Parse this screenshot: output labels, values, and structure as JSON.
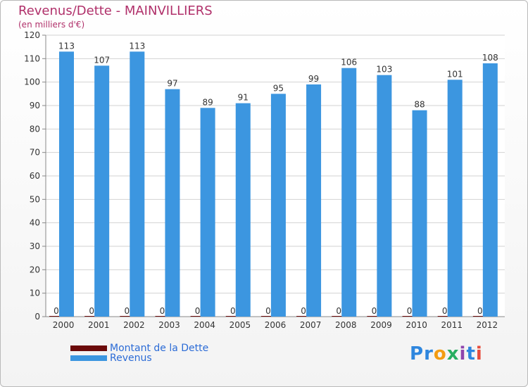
{
  "chart_data": {
    "type": "bar",
    "title": "Revenus/Dette - MAINVILLIERS",
    "subtitle": "(en milliers d'€)",
    "categories": [
      "2000",
      "2001",
      "2002",
      "2003",
      "2004",
      "2005",
      "2006",
      "2007",
      "2008",
      "2009",
      "2010",
      "2011",
      "2012"
    ],
    "series": [
      {
        "name": "Montant de la Dette",
        "color": "#6b0a0a",
        "values": [
          0,
          0,
          0,
          0,
          0,
          0,
          0,
          0,
          0,
          0,
          0,
          0,
          0
        ]
      },
      {
        "name": "Revenus",
        "color": "#3c96e0",
        "values": [
          113,
          107,
          113,
          97,
          89,
          91,
          95,
          99,
          106,
          103,
          88,
          101,
          108
        ]
      }
    ],
    "ylim": [
      0,
      120
    ],
    "yticks": [
      0,
      10,
      20,
      30,
      40,
      50,
      60,
      70,
      80,
      90,
      100,
      110,
      120
    ],
    "grid": true,
    "legend": "bottom-left"
  },
  "brand": {
    "text": "Proxiti",
    "letters": [
      "P",
      "r",
      "o",
      "x",
      "i",
      "t",
      "i"
    ],
    "colors": [
      "#2e86de",
      "#2e86de",
      "#f39c12",
      "#27ae60",
      "#8e44ad",
      "#2e86de",
      "#e74c3c"
    ]
  }
}
